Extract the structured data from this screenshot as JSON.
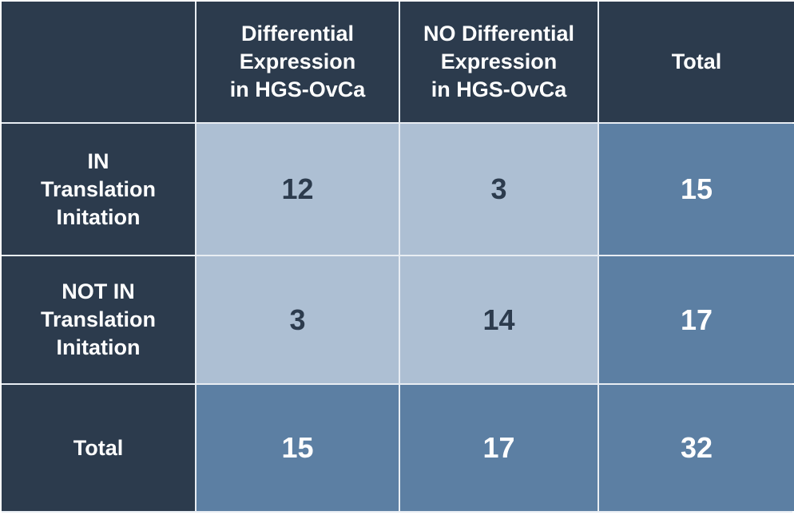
{
  "chart_data": {
    "type": "table",
    "columns": [
      "",
      "Differential\nExpression\nin HGS-OvCa",
      "NO Differential\nExpression\nin HGS-OvCa",
      "Total"
    ],
    "rows": [
      {
        "label": "IN\nTranslation\nInitation",
        "values": [
          "12",
          "3",
          "15"
        ]
      },
      {
        "label": "NOT IN\nTranslation\nInitation",
        "values": [
          "3",
          "14",
          "17"
        ]
      },
      {
        "label": "Total",
        "values": [
          "15",
          "17",
          "32"
        ]
      }
    ]
  },
  "colors": {
    "header_bg": "#2c3b4d",
    "count_bg": "#adbfd3",
    "total_bg": "#5c7fa3"
  }
}
